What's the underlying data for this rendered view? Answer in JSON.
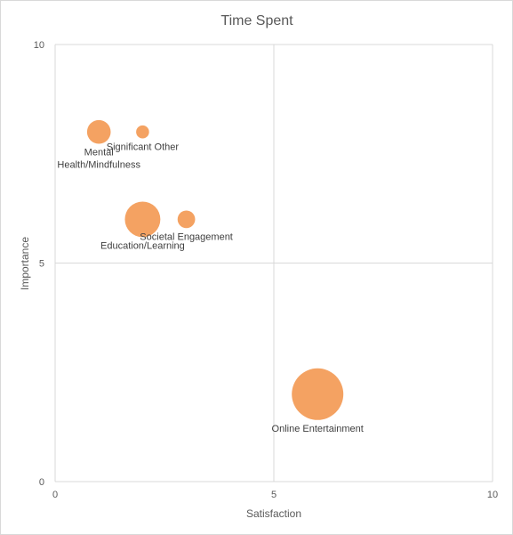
{
  "chart_data": {
    "type": "scatter",
    "subtype": "bubble",
    "title": "Time Spent",
    "xlabel": "Satisfaction",
    "ylabel": "Importance",
    "xlim": [
      0,
      10
    ],
    "ylim": [
      0,
      10
    ],
    "xticks": [
      0,
      5,
      10
    ],
    "yticks": [
      0,
      5,
      10
    ],
    "grid": true,
    "legend": "none",
    "bubble_color": "#F4A262",
    "points": [
      {
        "label": "Mental Health/Mindfulness",
        "label_lines": [
          "Mental",
          "Health/Mindfulness"
        ],
        "x": 1,
        "y": 8,
        "size": 2
      },
      {
        "label": "Significant Other",
        "label_lines": [
          "Significant Other"
        ],
        "x": 2,
        "y": 8,
        "size": 0.6
      },
      {
        "label": "Education/Learning",
        "label_lines": [
          "Education/Learning"
        ],
        "x": 2,
        "y": 6,
        "size": 4.5
      },
      {
        "label": "Societal Engagement",
        "label_lines": [
          "Societal Engagement"
        ],
        "x": 3,
        "y": 6,
        "size": 1.1
      },
      {
        "label": "Online Entertainment",
        "label_lines": [
          "Online Entertainment"
        ],
        "x": 6,
        "y": 2,
        "size": 9.5
      }
    ]
  }
}
